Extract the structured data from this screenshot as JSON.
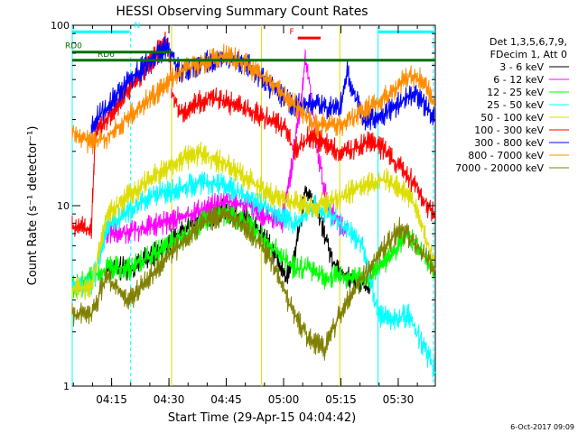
{
  "chart_data": {
    "type": "line",
    "title": "HESSI Observing Summary Count Rates",
    "xlabel": "Start Time (29-Apr-15 04:04:42)",
    "ylabel": "Count Rate (s⁻¹ detector⁻¹)",
    "yscale": "log",
    "ylim": [
      1,
      100
    ],
    "xlim_minutes": [
      0,
      95
    ],
    "y_ticks": [
      {
        "value": 1,
        "label": "1"
      },
      {
        "value": 10,
        "label": "10"
      },
      {
        "value": 100,
        "label": "100"
      }
    ],
    "x_ticks": [
      {
        "minute": 10.3,
        "label": "04:15"
      },
      {
        "minute": 25.3,
        "label": "04:30"
      },
      {
        "minute": 40.3,
        "label": "04:45"
      },
      {
        "minute": 55.3,
        "label": "05:00"
      },
      {
        "minute": 70.3,
        "label": "05:15"
      },
      {
        "minute": 85.3,
        "label": "05:30"
      }
    ],
    "legend_header": [
      "Det 1,3,5,6,7,9,",
      "FDecim 1, Att 0"
    ],
    "legend_position": "right",
    "series": [
      {
        "name": "3 - 6 keV",
        "color": "#000000",
        "points": [
          [
            9,
            4.5
          ],
          [
            15,
            4.5
          ],
          [
            22,
            5.5
          ],
          [
            28,
            7
          ],
          [
            34,
            8.5
          ],
          [
            40,
            9.5
          ],
          [
            46,
            8.5
          ],
          [
            52,
            6
          ],
          [
            56,
            4
          ],
          [
            58,
            5
          ],
          [
            61,
            12
          ],
          [
            64,
            10
          ],
          [
            68,
            5
          ],
          [
            72,
            4
          ],
          [
            78,
            3.5
          ]
        ]
      },
      {
        "name": "6 - 12 keV",
        "color": "#ff00ff",
        "points": [
          [
            9,
            7
          ],
          [
            15,
            7.2
          ],
          [
            22,
            7.8
          ],
          [
            28,
            8.5
          ],
          [
            34,
            9.5
          ],
          [
            40,
            10.5
          ],
          [
            46,
            10
          ],
          [
            52,
            8.5
          ],
          [
            55,
            8
          ],
          [
            58,
            20
          ],
          [
            60,
            40
          ],
          [
            61,
            65
          ],
          [
            62,
            50
          ],
          [
            64,
            22
          ],
          [
            66,
            12
          ],
          [
            68,
            9
          ],
          [
            72,
            7
          ]
        ]
      },
      {
        "name": "12 - 25 keV",
        "color": "#00ff00",
        "points": [
          [
            0,
            3.5
          ],
          [
            9,
            4.5
          ],
          [
            15,
            4.5
          ],
          [
            22,
            5.5
          ],
          [
            28,
            6.5
          ],
          [
            34,
            8
          ],
          [
            40,
            9
          ],
          [
            46,
            8
          ],
          [
            52,
            6
          ],
          [
            58,
            4.5
          ],
          [
            62,
            4.5
          ],
          [
            66,
            4
          ],
          [
            72,
            4
          ],
          [
            78,
            4
          ],
          [
            84,
            5.5
          ],
          [
            88,
            7
          ],
          [
            92,
            5.5
          ],
          [
            95,
            4
          ]
        ]
      },
      {
        "name": "25 - 50 keV",
        "color": "#00ffff",
        "points": [
          [
            0,
            3.5
          ],
          [
            5,
            3.5
          ],
          [
            9,
            7.5
          ],
          [
            15,
            9.5
          ],
          [
            22,
            11.5
          ],
          [
            28,
            12.5
          ],
          [
            34,
            13.5
          ],
          [
            40,
            13
          ],
          [
            46,
            11
          ],
          [
            52,
            9.5
          ],
          [
            58,
            8
          ],
          [
            64,
            10
          ],
          [
            70,
            8
          ],
          [
            76,
            6
          ],
          [
            80,
            2.5
          ],
          [
            84,
            2.3
          ],
          [
            88,
            2.5
          ],
          [
            95,
            1.2
          ]
        ]
      },
      {
        "name": "50 - 100 keV",
        "color": "#dddd00",
        "points": [
          [
            0,
            3.5
          ],
          [
            5,
            3.5
          ],
          [
            9,
            9
          ],
          [
            15,
            11.5
          ],
          [
            22,
            15
          ],
          [
            28,
            18
          ],
          [
            34,
            19.5
          ],
          [
            40,
            17
          ],
          [
            46,
            14
          ],
          [
            52,
            11.5
          ],
          [
            58,
            10.5
          ],
          [
            64,
            10
          ],
          [
            70,
            11
          ],
          [
            76,
            13
          ],
          [
            82,
            14
          ],
          [
            86,
            12.5
          ],
          [
            90,
            10
          ],
          [
            95,
            4.5
          ]
        ]
      },
      {
        "name": "100 - 300 keV",
        "color": "#ff0000",
        "points": [
          [
            0,
            7.5
          ],
          [
            5,
            7.5
          ],
          [
            6,
            25
          ],
          [
            9,
            30
          ],
          [
            15,
            45
          ],
          [
            20,
            60
          ],
          [
            25,
            85
          ],
          [
            26,
            45
          ],
          [
            28,
            32
          ],
          [
            32,
            36
          ],
          [
            36,
            40
          ],
          [
            40,
            38
          ],
          [
            46,
            34
          ],
          [
            52,
            30
          ],
          [
            56,
            26
          ],
          [
            58,
            20
          ],
          [
            62,
            24
          ],
          [
            66,
            22
          ],
          [
            70,
            20
          ],
          [
            75,
            21
          ],
          [
            78,
            23
          ],
          [
            82,
            20
          ],
          [
            86,
            16
          ],
          [
            90,
            13
          ],
          [
            93,
            10
          ],
          [
            95,
            9
          ]
        ]
      },
      {
        "name": "300 - 800 keV",
        "color": "#0000ff",
        "points": [
          [
            5,
            28
          ],
          [
            9,
            35
          ],
          [
            15,
            50
          ],
          [
            20,
            62
          ],
          [
            25,
            78
          ],
          [
            28,
            55
          ],
          [
            34,
            62
          ],
          [
            40,
            65
          ],
          [
            46,
            60
          ],
          [
            52,
            45
          ],
          [
            58,
            36
          ],
          [
            64,
            36
          ],
          [
            70,
            34
          ],
          [
            72,
            55
          ],
          [
            76,
            30
          ],
          [
            82,
            32
          ],
          [
            86,
            38
          ],
          [
            90,
            42
          ],
          [
            95,
            30
          ]
        ]
      },
      {
        "name": "800 - 7000 keV",
        "color": "#ff8c00",
        "points": [
          [
            0,
            26
          ],
          [
            5,
            22
          ],
          [
            9,
            24
          ],
          [
            15,
            32
          ],
          [
            22,
            42
          ],
          [
            28,
            55
          ],
          [
            34,
            62
          ],
          [
            40,
            68
          ],
          [
            46,
            60
          ],
          [
            52,
            48
          ],
          [
            56,
            40
          ],
          [
            60,
            33
          ],
          [
            64,
            28
          ],
          [
            70,
            28
          ],
          [
            76,
            33
          ],
          [
            82,
            40
          ],
          [
            88,
            52
          ],
          [
            92,
            50
          ],
          [
            95,
            35
          ]
        ]
      },
      {
        "name": "7000 - 20000 keV",
        "color": "#808000",
        "points": [
          [
            0,
            2.5
          ],
          [
            5,
            2.5
          ],
          [
            9,
            4
          ],
          [
            15,
            3
          ],
          [
            22,
            4.5
          ],
          [
            28,
            6
          ],
          [
            34,
            8
          ],
          [
            40,
            9
          ],
          [
            46,
            7.5
          ],
          [
            52,
            5
          ],
          [
            58,
            2.5
          ],
          [
            62,
            1.8
          ],
          [
            66,
            1.6
          ],
          [
            70,
            2.5
          ],
          [
            76,
            4
          ],
          [
            82,
            6
          ],
          [
            86,
            7.5
          ],
          [
            90,
            6
          ],
          [
            95,
            4.5
          ]
        ]
      }
    ],
    "markers": [
      {
        "label": "N",
        "color": "#00ffff",
        "start": 0,
        "end": 15,
        "value": 92
      },
      {
        "label": "",
        "color": "#00ffff",
        "start": 80,
        "end": 95,
        "value": 92
      },
      {
        "label": "F",
        "color": "#ff0000",
        "start": 59,
        "end": 65,
        "value": 85
      },
      {
        "label": "RD0",
        "color": "#007000",
        "start": 0,
        "end": 26,
        "value": 71
      },
      {
        "label": "RD6",
        "color": "#007000",
        "start": 0,
        "end": 95,
        "value": 64
      }
    ],
    "vertical_lines": [
      {
        "minute": 0,
        "color": "#00ffff",
        "style": "solid"
      },
      {
        "minute": 15.3,
        "color": "#00ffff",
        "style": "dashed"
      },
      {
        "minute": 80,
        "color": "#00ffff",
        "style": "solid"
      },
      {
        "minute": 94.5,
        "color": "#00ffff",
        "style": "dashed"
      },
      {
        "minute": 26,
        "color": "#dddd00",
        "style": "solid"
      },
      {
        "minute": 49.5,
        "color": "#dddd00",
        "style": "solid"
      },
      {
        "minute": 70,
        "color": "#dddd00",
        "style": "solid"
      }
    ],
    "timestamp": "6-Oct-2017 09:09"
  }
}
